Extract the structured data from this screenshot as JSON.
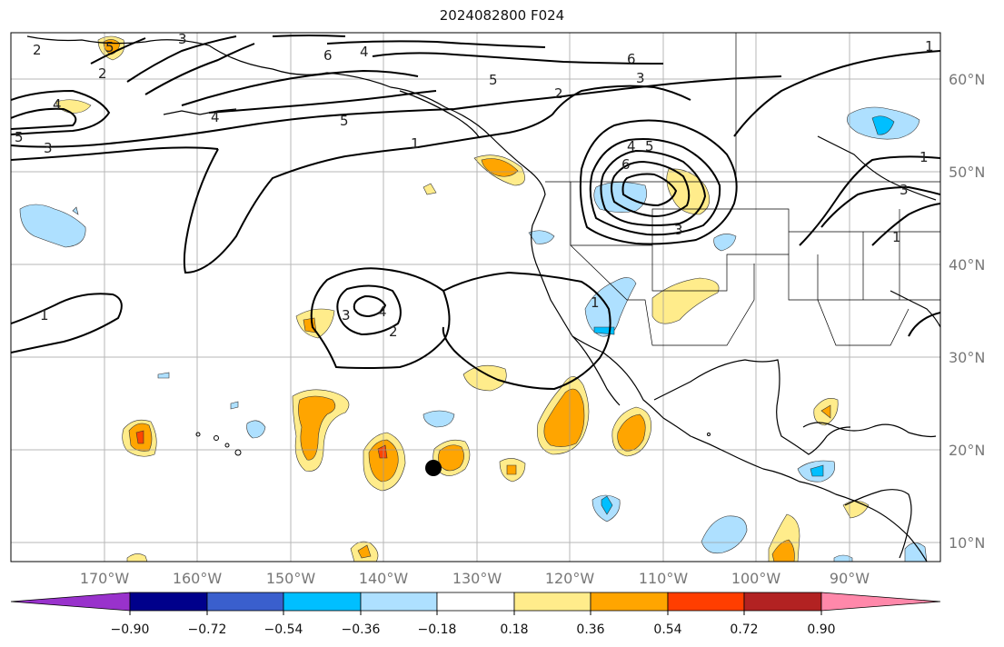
{
  "title": "2024082800 F024",
  "map": {
    "lon_labels": [
      "170°W",
      "160°W",
      "150°W",
      "140°W",
      "130°W",
      "120°W",
      "110°W",
      "100°W",
      "90°W"
    ],
    "lat_labels": [
      "60°N",
      "50°N",
      "40°N",
      "30°N",
      "20°N",
      "10°N"
    ],
    "contour_labels": [
      "1",
      "2",
      "3",
      "4",
      "5",
      "6",
      "6",
      "5",
      "4",
      "5",
      "5",
      "3",
      "2",
      "1",
      "2",
      "3",
      "4",
      "5",
      "4",
      "6",
      "3",
      "3",
      "1",
      "1",
      "2",
      "3",
      "4",
      "1",
      "1"
    ],
    "fill_colors": {
      "pos_018": "#FFEC8B",
      "pos_036": "#FFA500",
      "pos_054": "#FF4500",
      "neg_018": "#AEE0FF",
      "neg_036": "#00BFFF"
    }
  },
  "colorbar": {
    "colors": [
      "#9932CC",
      "#00008B",
      "#3A5FCD",
      "#00BFFF",
      "#AEE0FF",
      "#FFFFFF",
      "#FFEC8B",
      "#FFA500",
      "#FF3E00",
      "#B22222",
      "#FF88AA"
    ],
    "tick_labels": [
      "−0.90",
      "−0.72",
      "−0.54",
      "−0.36",
      "−0.18",
      "0.18",
      "0.36",
      "0.54",
      "0.72",
      "0.90"
    ]
  }
}
